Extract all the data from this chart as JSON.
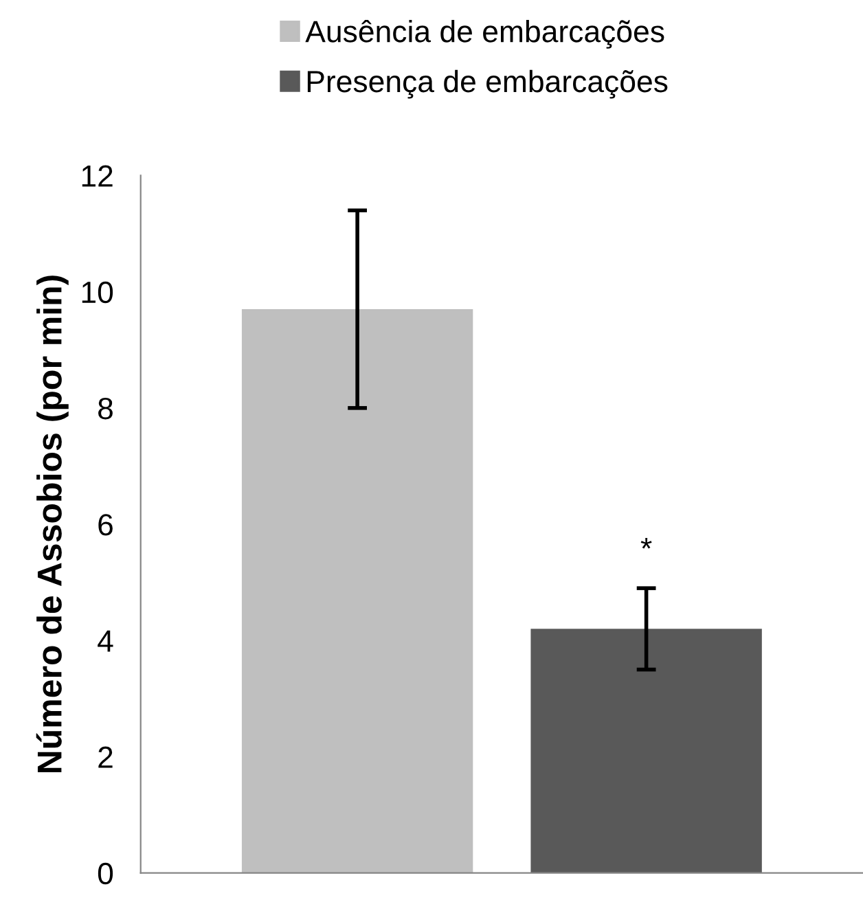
{
  "chart_data": {
    "type": "bar",
    "ylabel": "Número de Assobios (por min)",
    "categories": [
      null
    ],
    "series": [
      {
        "name": "Ausência de embarcações",
        "color": "#bfbfbf",
        "values": [
          9.7
        ],
        "errors": [
          1.7
        ]
      },
      {
        "name": "Presença de embarcações",
        "color": "#595959",
        "values": [
          4.2
        ],
        "errors": [
          0.7
        ]
      }
    ],
    "ylim": [
      0,
      12
    ],
    "yticks": [
      0,
      2,
      4,
      6,
      8,
      10,
      12
    ],
    "grid": false,
    "legend": "top",
    "annotations": [
      "*"
    ]
  }
}
